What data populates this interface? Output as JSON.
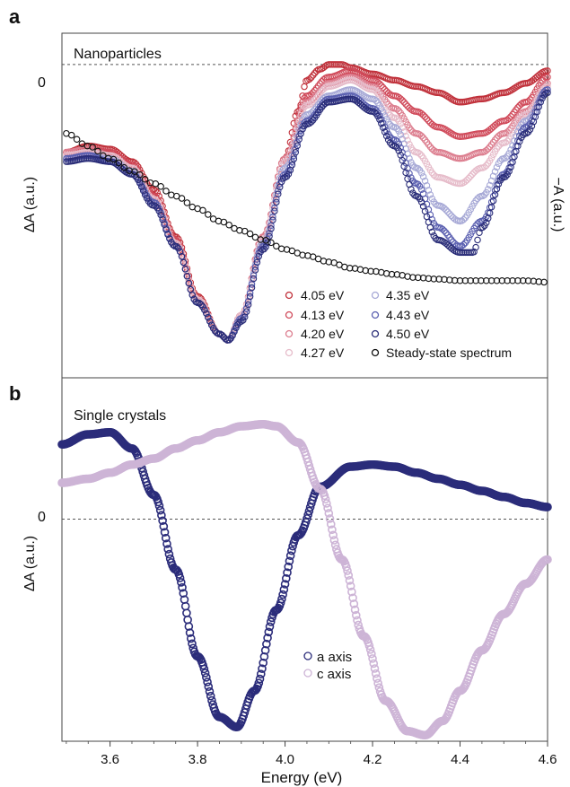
{
  "chart_data": [
    {
      "panel_label": "a",
      "title": "Nanoparticles",
      "type": "scatter",
      "ylabel": "ΔA (a.u.)",
      "ylabel_right": "−A (a.u.)",
      "zero_label": "0",
      "xlim": [
        3.49,
        4.6
      ],
      "ylim": [
        -1.0,
        0.1
      ],
      "zero_line": "dashed",
      "legend_placement": "bottom-right",
      "series": [
        {
          "name": "4.05 eV",
          "color": "#c0303a",
          "x": [
            3.5,
            3.55,
            3.6,
            3.65,
            3.7,
            3.75,
            3.8,
            3.85,
            3.87,
            3.9,
            3.95,
            4.0,
            4.03,
            4.05,
            4.08,
            4.1,
            4.13,
            4.15,
            4.2,
            4.25,
            4.3,
            4.35,
            4.4,
            4.45,
            4.5,
            4.55,
            4.6
          ],
          "y": [
            -0.28,
            -0.26,
            -0.27,
            -0.31,
            -0.4,
            -0.55,
            -0.74,
            -0.86,
            -0.88,
            -0.8,
            -0.55,
            -0.3,
            -0.15,
            -0.05,
            -0.015,
            0.0,
            0.0,
            -0.01,
            -0.03,
            -0.05,
            -0.07,
            -0.09,
            -0.12,
            -0.11,
            -0.09,
            -0.06,
            -0.02
          ]
        },
        {
          "name": "4.13 eV",
          "color": "#d04a5a",
          "x": [
            3.5,
            3.55,
            3.6,
            3.65,
            3.7,
            3.75,
            3.8,
            3.85,
            3.87,
            3.9,
            3.95,
            4.0,
            4.05,
            4.1,
            4.15,
            4.2,
            4.25,
            4.3,
            4.35,
            4.4,
            4.45,
            4.5,
            4.55,
            4.6
          ],
          "y": [
            -0.28,
            -0.27,
            -0.28,
            -0.32,
            -0.42,
            -0.56,
            -0.75,
            -0.86,
            -0.88,
            -0.8,
            -0.55,
            -0.3,
            -0.1,
            -0.04,
            -0.02,
            -0.05,
            -0.1,
            -0.15,
            -0.2,
            -0.23,
            -0.22,
            -0.18,
            -0.12,
            -0.04
          ]
        },
        {
          "name": "4.20 eV",
          "color": "#dc7d8e",
          "x": [
            3.5,
            3.55,
            3.6,
            3.65,
            3.7,
            3.75,
            3.8,
            3.85,
            3.87,
            3.9,
            3.95,
            4.0,
            4.05,
            4.1,
            4.15,
            4.2,
            4.25,
            4.3,
            4.35,
            4.4,
            4.45,
            4.5,
            4.55,
            4.6
          ],
          "y": [
            -0.28,
            -0.27,
            -0.29,
            -0.33,
            -0.43,
            -0.57,
            -0.75,
            -0.86,
            -0.88,
            -0.8,
            -0.55,
            -0.3,
            -0.12,
            -0.06,
            -0.04,
            -0.07,
            -0.14,
            -0.22,
            -0.28,
            -0.3,
            -0.28,
            -0.22,
            -0.15,
            -0.06
          ]
        },
        {
          "name": "4.27 eV",
          "color": "#e6bcca",
          "x": [
            3.5,
            3.55,
            3.6,
            3.65,
            3.7,
            3.75,
            3.8,
            3.85,
            3.87,
            3.9,
            3.95,
            4.0,
            4.05,
            4.1,
            4.15,
            4.2,
            4.25,
            4.3,
            4.35,
            4.4,
            4.45,
            4.5,
            4.55,
            4.6
          ],
          "y": [
            -0.29,
            -0.28,
            -0.29,
            -0.33,
            -0.43,
            -0.57,
            -0.75,
            -0.86,
            -0.88,
            -0.8,
            -0.56,
            -0.31,
            -0.13,
            -0.07,
            -0.05,
            -0.08,
            -0.17,
            -0.28,
            -0.36,
            -0.38,
            -0.33,
            -0.25,
            -0.16,
            -0.07
          ]
        },
        {
          "name": "4.35 eV",
          "color": "#a7a9d6",
          "x": [
            3.5,
            3.55,
            3.6,
            3.65,
            3.7,
            3.75,
            3.8,
            3.85,
            3.87,
            3.9,
            3.95,
            4.0,
            4.05,
            4.1,
            4.15,
            4.2,
            4.25,
            4.3,
            4.35,
            4.4,
            4.45,
            4.5,
            4.55,
            4.6
          ],
          "y": [
            -0.3,
            -0.29,
            -0.3,
            -0.34,
            -0.44,
            -0.58,
            -0.76,
            -0.86,
            -0.88,
            -0.81,
            -0.57,
            -0.33,
            -0.16,
            -0.1,
            -0.08,
            -0.11,
            -0.2,
            -0.33,
            -0.45,
            -0.5,
            -0.42,
            -0.3,
            -0.18,
            -0.08
          ]
        },
        {
          "name": "4.43 eV",
          "color": "#5a5fb0",
          "x": [
            3.5,
            3.55,
            3.6,
            3.65,
            3.7,
            3.75,
            3.8,
            3.85,
            3.87,
            3.9,
            3.95,
            4.0,
            4.05,
            4.1,
            4.15,
            4.2,
            4.25,
            4.3,
            4.35,
            4.4,
            4.45,
            4.5,
            4.55,
            4.6
          ],
          "y": [
            -0.3,
            -0.29,
            -0.31,
            -0.35,
            -0.44,
            -0.58,
            -0.76,
            -0.86,
            -0.88,
            -0.81,
            -0.58,
            -0.35,
            -0.18,
            -0.11,
            -0.1,
            -0.14,
            -0.24,
            -0.38,
            -0.52,
            -0.58,
            -0.5,
            -0.35,
            -0.2,
            -0.08
          ]
        },
        {
          "name": "4.50 eV",
          "color": "#2a2d78",
          "x": [
            3.5,
            3.55,
            3.6,
            3.65,
            3.7,
            3.75,
            3.8,
            3.85,
            3.87,
            3.9,
            3.95,
            4.0,
            4.05,
            4.1,
            4.15,
            4.2,
            4.25,
            4.3,
            4.35,
            4.4,
            4.43,
            4.45,
            4.5,
            4.55,
            4.6
          ],
          "y": [
            -0.31,
            -0.3,
            -0.31,
            -0.35,
            -0.45,
            -0.58,
            -0.76,
            -0.86,
            -0.88,
            -0.82,
            -0.59,
            -0.36,
            -0.19,
            -0.12,
            -0.11,
            -0.15,
            -0.26,
            -0.42,
            -0.56,
            -0.6,
            -0.6,
            -0.52,
            -0.36,
            -0.22,
            -0.09
          ]
        },
        {
          "name": "Steady-state spectrum",
          "color": "#111111",
          "x": [
            3.5,
            3.55,
            3.6,
            3.65,
            3.7,
            3.75,
            3.8,
            3.85,
            3.9,
            3.95,
            4.0,
            4.05,
            4.1,
            4.15,
            4.2,
            4.25,
            4.3,
            4.35,
            4.4,
            4.45,
            4.5,
            4.55,
            4.6
          ],
          "y": [
            -0.22,
            -0.26,
            -0.3,
            -0.34,
            -0.38,
            -0.42,
            -0.46,
            -0.5,
            -0.53,
            -0.56,
            -0.59,
            -0.61,
            -0.63,
            -0.65,
            -0.66,
            -0.67,
            -0.68,
            -0.685,
            -0.69,
            -0.69,
            -0.69,
            -0.69,
            -0.695
          ]
        }
      ]
    },
    {
      "panel_label": "b",
      "title": "Single crystals",
      "type": "scatter",
      "ylabel": "ΔA (a.u.)",
      "zero_label": "0",
      "xlabel": "Energy (eV)",
      "xlim": [
        3.49,
        4.6
      ],
      "ylim": [
        -1.1,
        0.7
      ],
      "xticks": [
        3.6,
        3.8,
        4.0,
        4.2,
        4.4,
        4.6
      ],
      "xtick_labels": [
        "3.6",
        "3.8",
        "4.0",
        "4.2",
        "4.4",
        "4.6"
      ],
      "zero_line": "dashed",
      "legend_placement": "bottom-center",
      "series": [
        {
          "name": "a axis",
          "color": "#2b2c7a",
          "x": [
            3.49,
            3.55,
            3.6,
            3.65,
            3.7,
            3.75,
            3.8,
            3.85,
            3.89,
            3.93,
            3.98,
            4.03,
            4.08,
            4.15,
            4.2,
            4.25,
            4.3,
            4.35,
            4.4,
            4.45,
            4.5,
            4.55,
            4.6
          ],
          "y": [
            0.37,
            0.42,
            0.43,
            0.35,
            0.12,
            -0.25,
            -0.68,
            -0.98,
            -1.03,
            -0.85,
            -0.45,
            -0.08,
            0.16,
            0.26,
            0.27,
            0.26,
            0.23,
            0.2,
            0.17,
            0.14,
            0.11,
            0.08,
            0.06
          ]
        },
        {
          "name": "c axis",
          "color": "#cdb4d6",
          "x": [
            3.49,
            3.55,
            3.6,
            3.65,
            3.7,
            3.75,
            3.8,
            3.85,
            3.9,
            3.95,
            3.98,
            4.03,
            4.08,
            4.13,
            4.18,
            4.23,
            4.28,
            4.32,
            4.36,
            4.4,
            4.45,
            4.5,
            4.55,
            4.6
          ],
          "y": [
            0.18,
            0.2,
            0.23,
            0.27,
            0.3,
            0.35,
            0.39,
            0.43,
            0.46,
            0.47,
            0.46,
            0.38,
            0.15,
            -0.2,
            -0.58,
            -0.9,
            -1.05,
            -1.07,
            -1.0,
            -0.85,
            -0.65,
            -0.47,
            -0.32,
            -0.2
          ]
        }
      ]
    }
  ]
}
